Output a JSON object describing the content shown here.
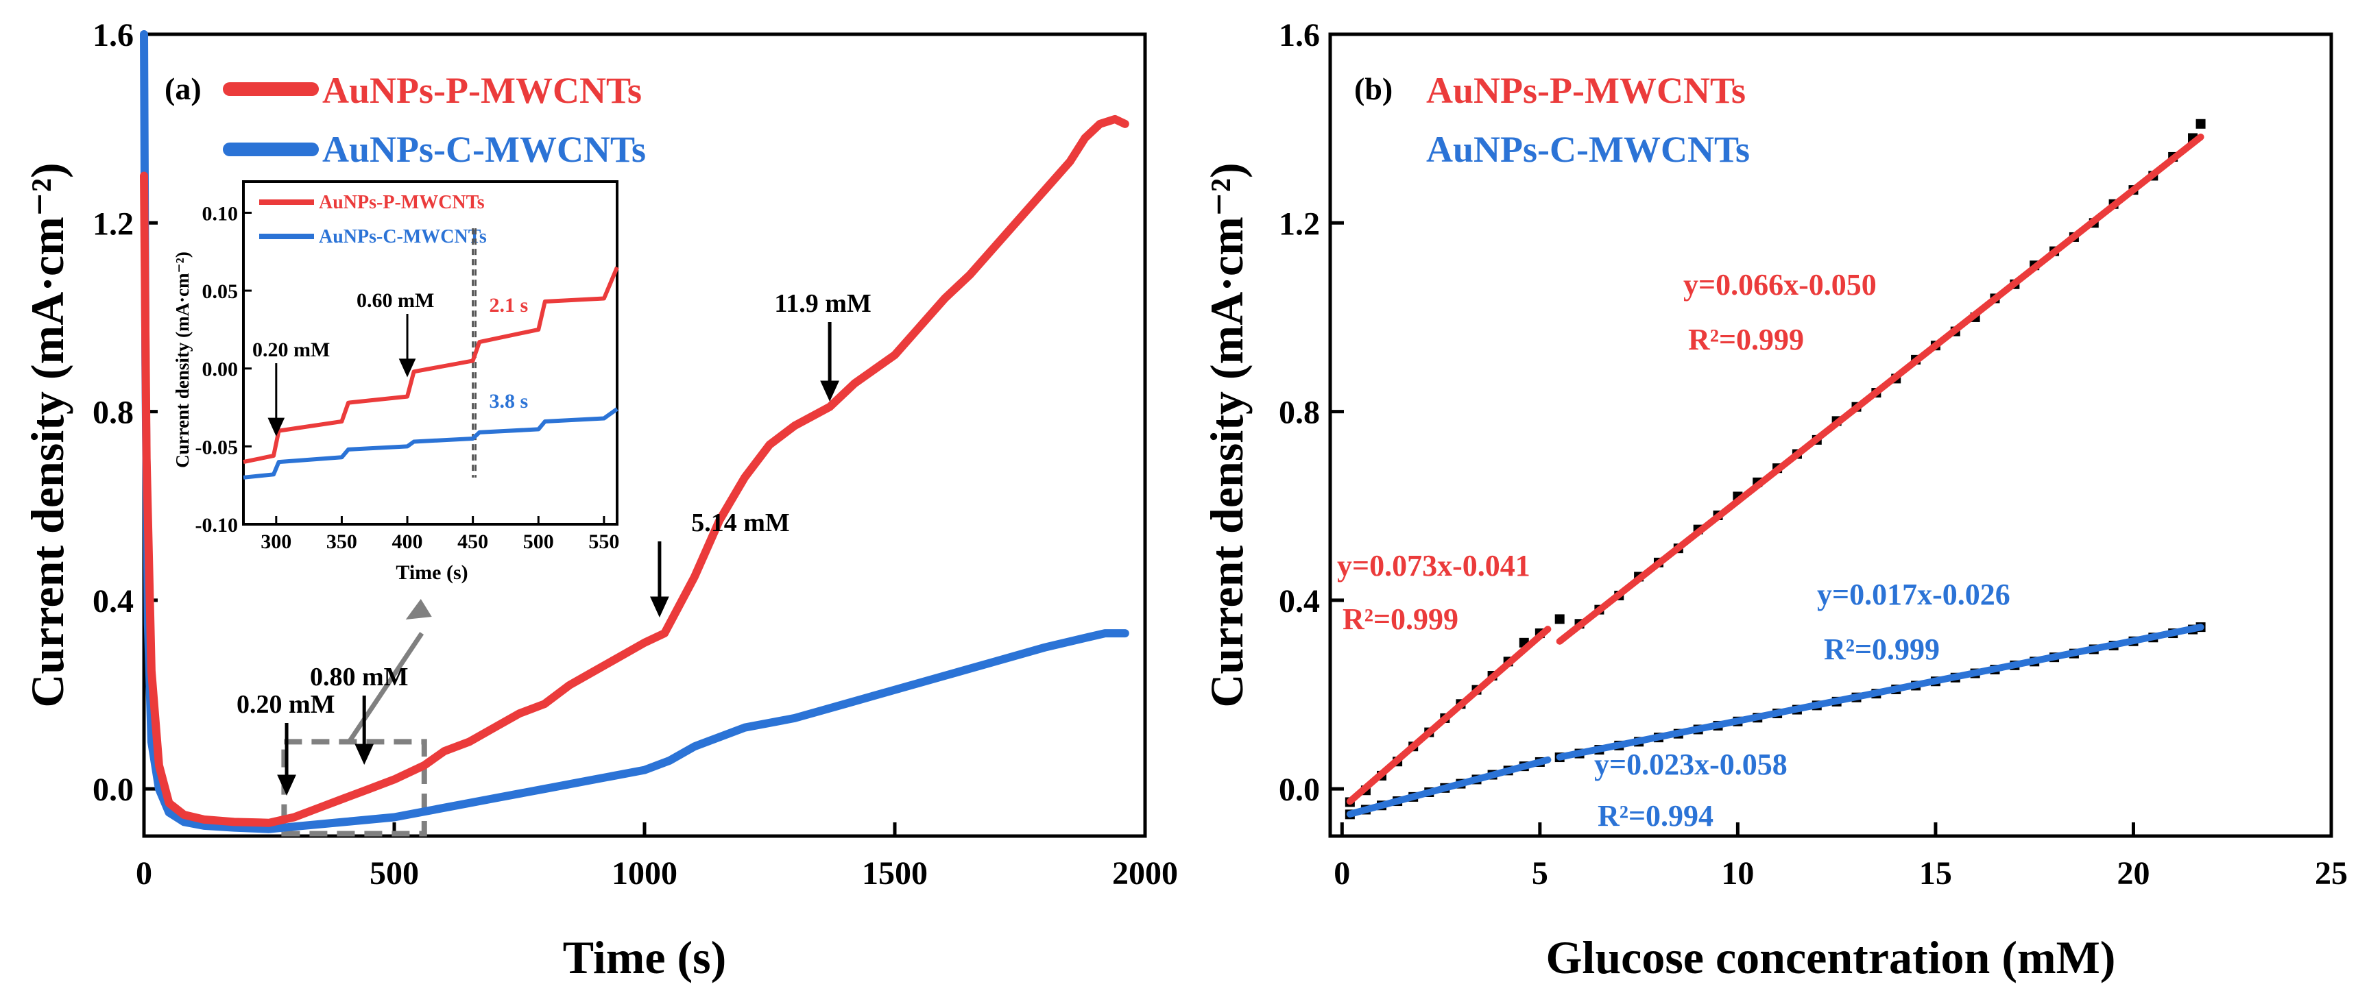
{
  "colors": {
    "red": "#eb3b3b",
    "blue": "#2b73d6",
    "black": "#000000",
    "gray": "#808080"
  },
  "chart_data": [
    {
      "panel": "(a)",
      "type": "line",
      "xlabel": "Time (s)",
      "ylabel": "Current density (mA·cm⁻²)",
      "xlim": [
        0,
        2000
      ],
      "ylim": [
        -0.1,
        1.6
      ],
      "xticks": [
        0,
        500,
        1000,
        1500,
        2000
      ],
      "yticks": [
        0.0,
        0.4,
        0.8,
        1.2,
        1.6
      ],
      "ytick_labels": [
        "0.0",
        "0.4",
        "0.8",
        "1.2",
        "1.6"
      ],
      "legend": [
        "AuNPs-P-MWCNTs",
        "AuNPs-C-MWCNTs"
      ],
      "series": [
        {
          "name": "AuNPs-P-MWCNTs",
          "color": "red",
          "x": [
            0,
            5,
            15,
            30,
            50,
            80,
            120,
            180,
            250,
            300,
            350,
            400,
            450,
            500,
            560,
            600,
            650,
            700,
            750,
            800,
            850,
            900,
            950,
            1000,
            1040,
            1100,
            1150,
            1200,
            1250,
            1300,
            1370,
            1420,
            1500,
            1550,
            1600,
            1650,
            1700,
            1750,
            1800,
            1850,
            1880,
            1910,
            1940,
            1960
          ],
          "y": [
            1.3,
            0.7,
            0.25,
            0.05,
            -0.03,
            -0.055,
            -0.065,
            -0.07,
            -0.072,
            -0.06,
            -0.04,
            -0.02,
            0.0,
            0.02,
            0.05,
            0.08,
            0.1,
            0.13,
            0.16,
            0.18,
            0.22,
            0.25,
            0.28,
            0.31,
            0.33,
            0.45,
            0.57,
            0.66,
            0.73,
            0.77,
            0.81,
            0.86,
            0.92,
            0.98,
            1.04,
            1.09,
            1.15,
            1.21,
            1.27,
            1.33,
            1.38,
            1.41,
            1.42,
            1.41
          ]
        },
        {
          "name": "AuNPs-C-MWCNTs",
          "color": "blue",
          "x": [
            0,
            3,
            8,
            15,
            30,
            50,
            80,
            120,
            180,
            250,
            300,
            400,
            500,
            600,
            700,
            800,
            900,
            1000,
            1050,
            1100,
            1200,
            1300,
            1400,
            1500,
            1600,
            1700,
            1800,
            1880,
            1920,
            1960
          ],
          "y": [
            1.6,
            0.9,
            0.35,
            0.1,
            0.0,
            -0.05,
            -0.07,
            -0.078,
            -0.082,
            -0.085,
            -0.08,
            -0.07,
            -0.06,
            -0.04,
            -0.02,
            0.0,
            0.02,
            0.04,
            0.06,
            0.09,
            0.13,
            0.15,
            0.18,
            0.21,
            0.24,
            0.27,
            0.3,
            0.32,
            0.33,
            0.33
          ]
        }
      ],
      "annotations": [
        {
          "text": "0.20 mM",
          "x": 285,
          "y": -0.055
        },
        {
          "text": "0.80 mM",
          "x": 440,
          "y": -0.02
        },
        {
          "text": "5.14 mM",
          "x": 1030,
          "y": 0.33
        },
        {
          "text": "11.9 mM",
          "x": 1370,
          "y": 0.8
        }
      ],
      "zoom_box": {
        "x": [
          280,
          560
        ],
        "y": [
          -0.095,
          0.1
        ]
      },
      "inset": {
        "type": "line",
        "xlabel": "Time (s)",
        "ylabel": "Current density (mA·cm⁻²)",
        "xlim": [
          275,
          560
        ],
        "ylim": [
          -0.1,
          0.12
        ],
        "xticks": [
          300,
          350,
          400,
          450,
          500,
          550
        ],
        "yticks": [
          -0.1,
          -0.05,
          0.0,
          0.05,
          0.1
        ],
        "ytick_labels": [
          "-0.10",
          "-0.05",
          "0.00",
          "0.05",
          "0.10"
        ],
        "legend": [
          "AuNPs-P-MWCNTs",
          "AuNPs-C-MWCNTs"
        ],
        "series": [
          {
            "name": "AuNPs-P-MWCNTs",
            "color": "red",
            "x": [
              275,
              298,
              302,
              350,
              355,
              400,
              405,
              450,
              455,
              500,
              505,
              550,
              560
            ],
            "y": [
              -0.06,
              -0.056,
              -0.04,
              -0.034,
              -0.022,
              -0.018,
              -0.002,
              0.005,
              0.017,
              0.025,
              0.043,
              0.045,
              0.065
            ]
          },
          {
            "name": "AuNPs-C-MWCNTs",
            "color": "blue",
            "x": [
              275,
              298,
              302,
              350,
              355,
              400,
              405,
              450,
              455,
              500,
              505,
              550,
              560
            ],
            "y": [
              -0.07,
              -0.068,
              -0.06,
              -0.057,
              -0.052,
              -0.05,
              -0.047,
              -0.045,
              -0.041,
              -0.039,
              -0.034,
              -0.032,
              -0.026
            ]
          }
        ],
        "annotations": [
          {
            "text": "0.20 mM",
            "x": 300,
            "y": -0.04
          },
          {
            "text": "0.60 mM",
            "x": 400,
            "y": -0.002
          },
          {
            "text": "2.1 s",
            "x": 452,
            "y": 0.04,
            "color": "red"
          },
          {
            "text": "3.8 s",
            "x": 452,
            "y": -0.026,
            "color": "blue"
          }
        ],
        "markers_x": [
          450,
          452
        ]
      }
    },
    {
      "panel": "(b)",
      "type": "scatter",
      "xlabel": "Glucose concentration (mM)",
      "ylabel": "Current density (mA·cm⁻²)",
      "xlim": [
        -0.3,
        25
      ],
      "ylim": [
        -0.1,
        1.6
      ],
      "xticks": [
        0,
        5,
        10,
        15,
        20,
        25
      ],
      "yticks": [
        0.0,
        0.4,
        0.8,
        1.2,
        1.6
      ],
      "ytick_labels": [
        "0.0",
        "0.4",
        "0.8",
        "1.2",
        "1.6"
      ],
      "legend": [
        "AuNPs-P-MWCNTs",
        "AuNPs-C-MWCNTs"
      ],
      "series": [
        {
          "name": "AuNPs-P-MWCNTs",
          "color": "red",
          "x": [
            0.2,
            0.6,
            1.0,
            1.4,
            1.8,
            2.2,
            2.6,
            3.0,
            3.4,
            3.8,
            4.2,
            4.6,
            5.0,
            5.5,
            6.0,
            6.5,
            7.0,
            7.5,
            8.0,
            8.5,
            9.0,
            9.5,
            10.0,
            10.5,
            11.0,
            11.5,
            12.0,
            12.5,
            13.0,
            13.5,
            14.0,
            14.5,
            15.0,
            15.5,
            16.0,
            16.5,
            17.0,
            17.5,
            18.0,
            18.5,
            19.0,
            19.5,
            20.0,
            20.5,
            21.0,
            21.5,
            21.7
          ],
          "y": [
            -0.028,
            -0.003,
            0.028,
            0.058,
            0.09,
            0.12,
            0.15,
            0.18,
            0.21,
            0.24,
            0.27,
            0.31,
            0.33,
            0.36,
            0.35,
            0.38,
            0.41,
            0.45,
            0.48,
            0.51,
            0.55,
            0.58,
            0.62,
            0.65,
            0.68,
            0.71,
            0.74,
            0.78,
            0.81,
            0.84,
            0.87,
            0.91,
            0.94,
            0.97,
            1.0,
            1.04,
            1.07,
            1.11,
            1.14,
            1.17,
            1.2,
            1.24,
            1.27,
            1.3,
            1.34,
            1.38,
            1.41
          ],
          "fits": [
            {
              "label": "y=0.073x-0.041",
              "r2": "R²=0.999",
              "slope": 0.073,
              "intercept": -0.041,
              "xrange": [
                0.2,
                5.2
              ]
            },
            {
              "label": "y=0.066x-0.050",
              "r2": "R²=0.999",
              "slope": 0.066,
              "intercept": -0.05,
              "xrange": [
                5.5,
                21.7
              ]
            }
          ]
        },
        {
          "name": "AuNPs-C-MWCNTs",
          "color": "blue",
          "x": [
            0.2,
            0.6,
            1.0,
            1.4,
            1.8,
            2.2,
            2.6,
            3.0,
            3.4,
            3.8,
            4.2,
            4.6,
            5.0,
            5.5,
            6.0,
            6.5,
            7.0,
            7.5,
            8.0,
            8.5,
            9.0,
            9.5,
            10.0,
            10.5,
            11.0,
            11.5,
            12.0,
            12.5,
            13.0,
            13.5,
            14.0,
            14.5,
            15.0,
            15.5,
            16.0,
            16.5,
            17.0,
            17.5,
            18.0,
            18.5,
            19.0,
            19.5,
            20.0,
            20.5,
            21.0,
            21.5,
            21.7
          ],
          "y": [
            -0.054,
            -0.044,
            -0.035,
            -0.026,
            -0.017,
            -0.007,
            0.002,
            0.011,
            0.02,
            0.03,
            0.039,
            0.048,
            0.057,
            0.067,
            0.075,
            0.083,
            0.092,
            0.1,
            0.109,
            0.117,
            0.126,
            0.134,
            0.143,
            0.151,
            0.16,
            0.168,
            0.177,
            0.185,
            0.194,
            0.202,
            0.211,
            0.219,
            0.228,
            0.236,
            0.245,
            0.253,
            0.262,
            0.27,
            0.279,
            0.287,
            0.296,
            0.304,
            0.313,
            0.321,
            0.33,
            0.338,
            0.343
          ],
          "fits": [
            {
              "label": "y=0.023x-0.058",
              "r2": "R²=0.994",
              "slope": 0.023,
              "intercept": -0.058,
              "xrange": [
                0.2,
                5.2
              ]
            },
            {
              "label": "y=0.017x-0.026",
              "r2": "R²=0.999",
              "slope": 0.017,
              "intercept": -0.026,
              "xrange": [
                5.5,
                21.7
              ]
            }
          ]
        }
      ]
    }
  ]
}
